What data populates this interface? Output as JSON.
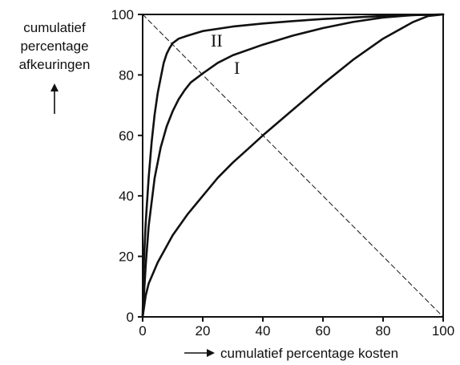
{
  "chart_data": {
    "type": "line",
    "xlabel": "cumulatief percentage kosten",
    "ylabel_lines": [
      "cumulatief",
      "percentage",
      "afkeuringen"
    ],
    "xlim": [
      0,
      100
    ],
    "ylim": [
      0,
      100
    ],
    "x_ticks": [
      0,
      20,
      40,
      60,
      80,
      100
    ],
    "y_ticks": [
      0,
      20,
      40,
      60,
      80,
      100
    ],
    "grid": false,
    "series": [
      {
        "name": "II",
        "color": "#111111",
        "style": "solid",
        "points": [
          [
            0,
            0
          ],
          [
            0.3,
            16
          ],
          [
            1,
            31
          ],
          [
            2,
            46
          ],
          [
            3,
            58
          ],
          [
            4,
            67
          ],
          [
            5,
            74
          ],
          [
            6,
            79
          ],
          [
            7,
            84
          ],
          [
            8,
            87
          ],
          [
            9,
            89
          ],
          [
            10,
            90.5
          ],
          [
            12,
            92
          ],
          [
            15,
            93
          ],
          [
            20,
            94.5
          ],
          [
            30,
            96
          ],
          [
            40,
            97
          ],
          [
            50,
            97.8
          ],
          [
            60,
            98.5
          ],
          [
            70,
            99
          ],
          [
            80,
            99.5
          ],
          [
            90,
            99.8
          ],
          [
            100,
            100
          ]
        ]
      },
      {
        "name": "I",
        "color": "#111111",
        "style": "solid",
        "points": [
          [
            0,
            0
          ],
          [
            1,
            17
          ],
          [
            2,
            30
          ],
          [
            4,
            46
          ],
          [
            6,
            56
          ],
          [
            8,
            63
          ],
          [
            10,
            68
          ],
          [
            12,
            72
          ],
          [
            14,
            75
          ],
          [
            16,
            77.5
          ],
          [
            18,
            79
          ],
          [
            20,
            80.5
          ],
          [
            25,
            84
          ],
          [
            30,
            86.5
          ],
          [
            40,
            90
          ],
          [
            50,
            93
          ],
          [
            60,
            95.5
          ],
          [
            70,
            97.5
          ],
          [
            80,
            99
          ],
          [
            90,
            99.8
          ],
          [
            100,
            100
          ]
        ]
      },
      {
        "name": "",
        "color": "#111111",
        "style": "solid",
        "points": [
          [
            0,
            0
          ],
          [
            1,
            7
          ],
          [
            2,
            11
          ],
          [
            5,
            18
          ],
          [
            10,
            27
          ],
          [
            15,
            34
          ],
          [
            20,
            40
          ],
          [
            25,
            46
          ],
          [
            30,
            51
          ],
          [
            35,
            55.5
          ],
          [
            40,
            60
          ],
          [
            50,
            68.5
          ],
          [
            60,
            77
          ],
          [
            70,
            85
          ],
          [
            80,
            92
          ],
          [
            90,
            97.5
          ],
          [
            95,
            99.5
          ],
          [
            100,
            100
          ]
        ]
      },
      {
        "name": "",
        "color": "#111111",
        "style": "dashed",
        "points": [
          [
            0,
            100
          ],
          [
            100,
            0
          ]
        ]
      }
    ]
  }
}
